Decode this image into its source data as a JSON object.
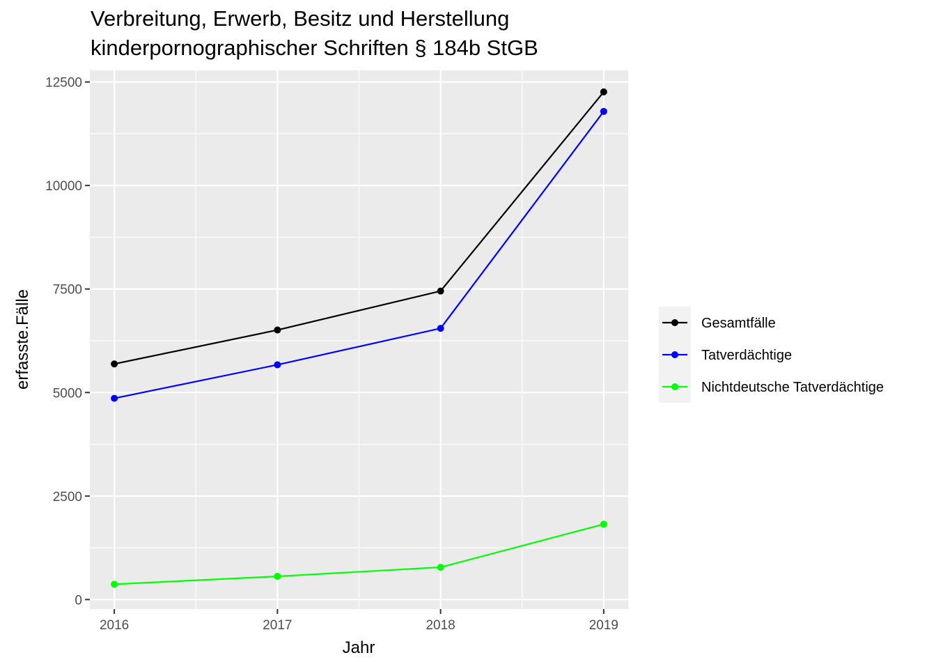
{
  "chart_data": {
    "type": "line",
    "title_lines": [
      "Verbreitung, Erwerb, Besitz und Herstellung",
      "kinderpornographischer Schriften § 184b StGB"
    ],
    "xlabel": "Jahr",
    "ylabel": "erfasste.Fälle",
    "x": [
      2016,
      2017,
      2018,
      2019
    ],
    "x_tick_labels": [
      "2016",
      "2017",
      "2018",
      "2019"
    ],
    "xlim": [
      2015.85,
      2019.15
    ],
    "y_ticks": [
      0,
      2500,
      5000,
      7500,
      10000,
      12500
    ],
    "y_tick_labels": [
      "0",
      "2500",
      "5000",
      "7500",
      "10000",
      "12500"
    ],
    "ylim": [
      -230,
      12780
    ],
    "grid": true,
    "legend_position": "right",
    "series": [
      {
        "name": "Gesamtfälle",
        "color": "#000000",
        "values": [
          5690,
          6510,
          7450,
          12260
        ]
      },
      {
        "name": "Tatverdächtige",
        "color": "#0000ff",
        "values": [
          4860,
          5670,
          6550,
          11790
        ]
      },
      {
        "name": "Nichtdeutsche Tatverdächtige",
        "color": "#00ff00",
        "values": [
          370,
          560,
          780,
          1820
        ]
      }
    ]
  }
}
